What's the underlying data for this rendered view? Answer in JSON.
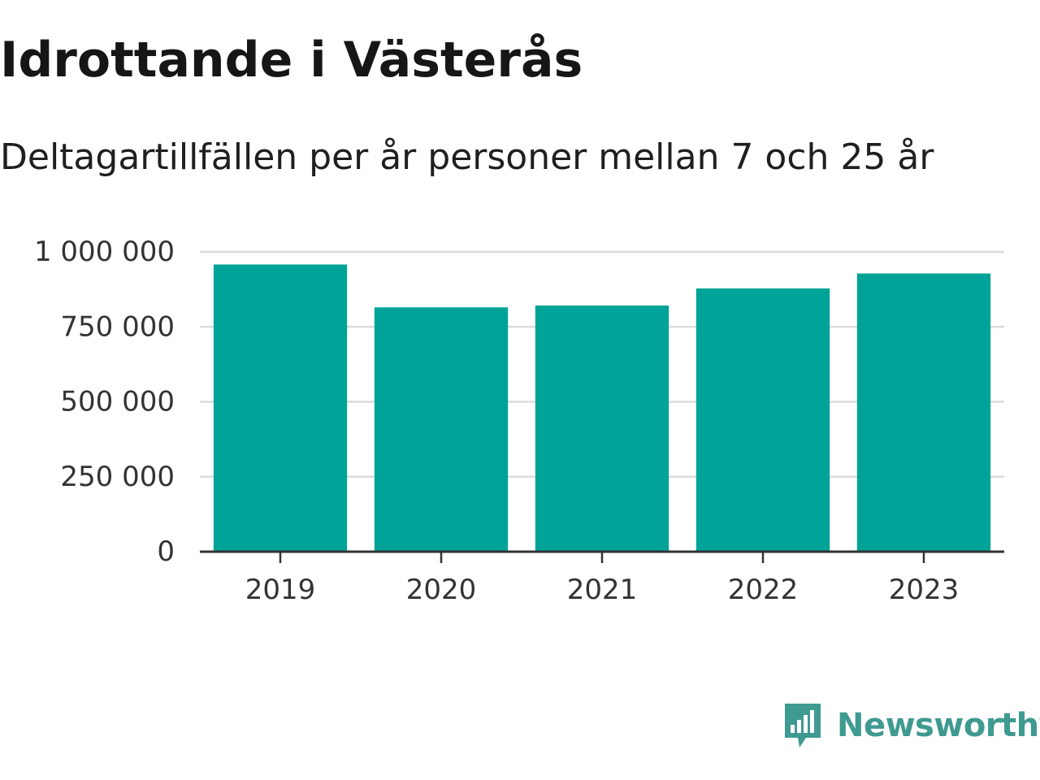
{
  "colors": {
    "bar": "#00a398",
    "grid": "#dcdcdc",
    "axis": "#333333",
    "brand": "#3f9a91"
  },
  "brand": {
    "name": "Newsworthy",
    "logo_icon": "newsworthy-chart-bubble-icon"
  },
  "chart_data": {
    "type": "bar",
    "title": "Idrottande i Västerås",
    "subtitle": "Deltagartillfällen per år personer mellan 7 och 25 år",
    "categories": [
      "2019",
      "2020",
      "2021",
      "2022",
      "2023"
    ],
    "values": [
      958000,
      815000,
      821000,
      878000,
      928000
    ],
    "ylim": [
      0,
      1000000
    ],
    "yticks": [
      0,
      250000,
      500000,
      750000,
      1000000
    ],
    "ytick_labels": [
      "0",
      "250 000",
      "500 000",
      "750 000",
      "1 000 000"
    ],
    "grid": true,
    "legend": "none"
  }
}
